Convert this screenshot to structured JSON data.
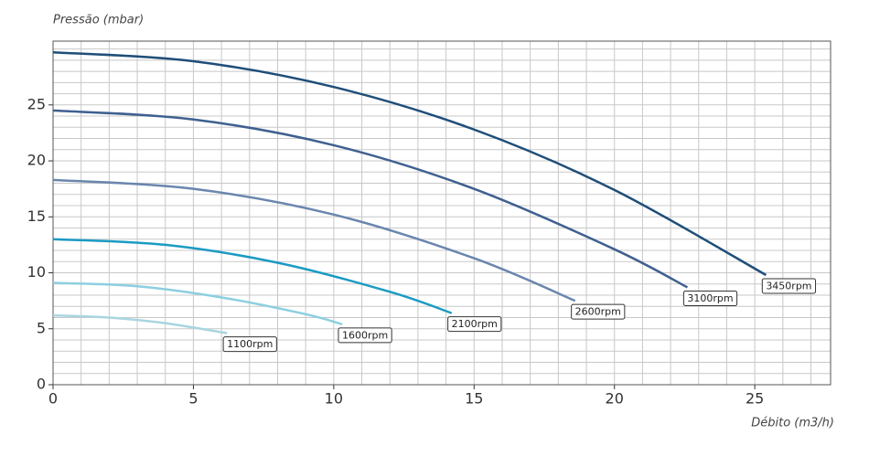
{
  "chart_data": {
    "type": "line",
    "y_label": "Pressão (mbar)",
    "x_label": "Débito (m3/h)",
    "xlim": [
      0,
      27.7
    ],
    "ylim": [
      0,
      30.7
    ],
    "xticks": [
      0,
      5,
      10,
      15,
      20,
      25
    ],
    "yticks": [
      0,
      5,
      10,
      15,
      20,
      25
    ],
    "grid": true,
    "minor_step": 1,
    "series": [
      {
        "name": "3450rpm",
        "color": "#1f4e79",
        "x": [
          0,
          5,
          10,
          15,
          20,
          25.4
        ],
        "values": [
          29.7,
          28.9,
          26.6,
          22.8,
          17.4,
          9.8
        ]
      },
      {
        "name": "3100rpm",
        "color": "#3f6090",
        "x": [
          0,
          5,
          10,
          15,
          20,
          22.6
        ],
        "values": [
          24.5,
          23.7,
          21.4,
          17.5,
          12.1,
          8.7
        ]
      },
      {
        "name": "2600rpm",
        "color": "#6a86ae",
        "x": [
          0,
          5,
          10,
          15,
          18.6
        ],
        "values": [
          18.3,
          17.5,
          15.2,
          11.3,
          7.5
        ]
      },
      {
        "name": "2100rpm",
        "color": "#1b9bc3",
        "x": [
          0,
          4,
          8,
          12,
          14.2
        ],
        "values": [
          13.0,
          12.5,
          10.9,
          8.3,
          6.4
        ]
      },
      {
        "name": "1600rpm",
        "color": "#8ccfe0",
        "x": [
          0,
          3,
          6,
          9,
          10.3
        ],
        "values": [
          9.1,
          8.8,
          7.8,
          6.3,
          5.4
        ]
      },
      {
        "name": "1100rpm",
        "color": "#a9d5e0",
        "x": [
          0,
          2,
          4,
          6.2
        ],
        "values": [
          6.2,
          6.0,
          5.5,
          4.6
        ]
      }
    ]
  }
}
